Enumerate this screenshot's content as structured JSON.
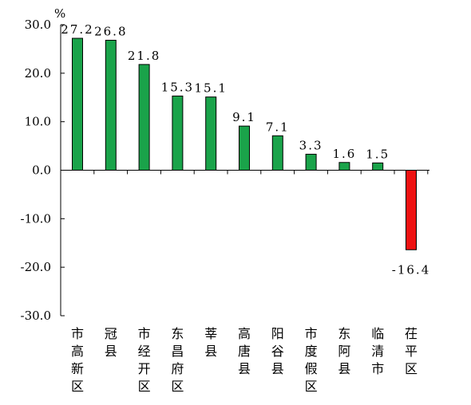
{
  "chart_data": {
    "type": "bar",
    "unit": "%",
    "ylim": [
      -30,
      30
    ],
    "yticks": [
      "30.0",
      "20.0",
      "10.0",
      "0.0",
      "-10.0",
      "-20.0",
      "-30.0"
    ],
    "ytick_values": [
      30,
      20,
      10,
      0,
      -10,
      -20,
      -30
    ],
    "categories": [
      "市高新区",
      "冠县",
      "市经开区",
      "东昌府区",
      "莘县",
      "高唐县",
      "阳谷县",
      "市度假区",
      "东阿县",
      "临清市",
      "茌平区"
    ],
    "values": [
      27.2,
      26.8,
      21.8,
      15.3,
      15.1,
      9.1,
      7.1,
      3.3,
      1.6,
      1.5,
      -16.4
    ],
    "value_labels": [
      "27.2",
      "26.8",
      "21.8",
      "15.3",
      "15.1",
      "9.1",
      "7.1",
      "3.3",
      "1.6",
      "1.5",
      "-16.4"
    ],
    "colors": {
      "positive": "#1aa34a",
      "negative": "#ee1111",
      "stroke": "#000000"
    },
    "grid": false,
    "legend": "none"
  }
}
